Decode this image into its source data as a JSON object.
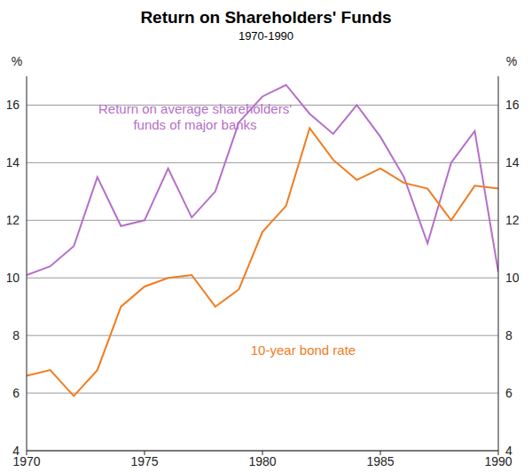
{
  "chart_data": {
    "type": "line",
    "title": "Return on Shareholders' Funds",
    "subtitle": "1970-1990",
    "ylabel": "%",
    "y2label": "%",
    "x": [
      1970,
      1971,
      1972,
      1973,
      1974,
      1975,
      1976,
      1977,
      1978,
      1979,
      1980,
      1981,
      1982,
      1983,
      1984,
      1985,
      1986,
      1987,
      1988,
      1989,
      1990
    ],
    "xlim": [
      1970,
      1990
    ],
    "xticks": [
      1970,
      1975,
      1980,
      1985,
      1990
    ],
    "ylim": [
      4,
      17
    ],
    "yticks": [
      4,
      6,
      8,
      10,
      12,
      14,
      16
    ],
    "y2lim": [
      4,
      17
    ],
    "y2ticks": [
      4,
      6,
      8,
      10,
      12,
      14,
      16
    ],
    "grid": true,
    "series": [
      {
        "name": "Return on average shareholders' funds of major banks",
        "color": "#b56fc8",
        "values": [
          10.1,
          10.4,
          11.1,
          13.5,
          11.8,
          12.0,
          13.8,
          12.1,
          13.0,
          15.4,
          16.3,
          16.7,
          15.7,
          15.0,
          16.0,
          14.9,
          13.5,
          11.2,
          14.0,
          15.1,
          10.2
        ]
      },
      {
        "name": "10-year bond rate",
        "color": "#f07c1f",
        "values": [
          6.6,
          6.8,
          5.9,
          6.8,
          9.0,
          9.7,
          10.0,
          10.1,
          9.0,
          9.6,
          11.6,
          12.5,
          15.2,
          14.1,
          13.4,
          13.8,
          13.3,
          13.1,
          12.0,
          13.2,
          13.1
        ]
      }
    ]
  }
}
